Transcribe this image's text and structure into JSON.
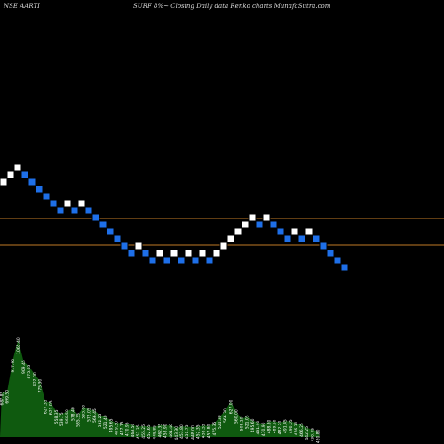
{
  "header": {
    "symbol": "NSE AARTI",
    "title": "SURF 8%~  Closing Daily data  Renko  charts MunafaSutra.com"
  },
  "colors": {
    "background": "#000000",
    "up_brick": "#ffffff",
    "down_brick": "#1e6fe8",
    "reference_line": "#c07a26",
    "volume_area": "#0f5a0f",
    "volume_label": "#ffffff"
  },
  "chart_data": {
    "type": "renko",
    "reference_levels": [
      246,
      276
    ],
    "bricks": [
      {
        "row": 0,
        "dir": "up"
      },
      {
        "row": 1,
        "dir": "up"
      },
      {
        "row": 2,
        "dir": "up"
      },
      {
        "row": 1,
        "dir": "down"
      },
      {
        "row": 0,
        "dir": "down"
      },
      {
        "row": -1,
        "dir": "down"
      },
      {
        "row": -2,
        "dir": "down"
      },
      {
        "row": -3,
        "dir": "down"
      },
      {
        "row": -4,
        "dir": "down"
      },
      {
        "row": -3,
        "dir": "up"
      },
      {
        "row": -4,
        "dir": "down"
      },
      {
        "row": -3,
        "dir": "up"
      },
      {
        "row": -4,
        "dir": "down"
      },
      {
        "row": -5,
        "dir": "down"
      },
      {
        "row": -6,
        "dir": "down"
      },
      {
        "row": -7,
        "dir": "down"
      },
      {
        "row": -8,
        "dir": "down"
      },
      {
        "row": -9,
        "dir": "down"
      },
      {
        "row": -10,
        "dir": "down"
      },
      {
        "row": -9,
        "dir": "up"
      },
      {
        "row": -10,
        "dir": "down"
      },
      {
        "row": -11,
        "dir": "down"
      },
      {
        "row": -10,
        "dir": "up"
      },
      {
        "row": -11,
        "dir": "down"
      },
      {
        "row": -10,
        "dir": "up"
      },
      {
        "row": -11,
        "dir": "down"
      },
      {
        "row": -10,
        "dir": "up"
      },
      {
        "row": -11,
        "dir": "down"
      },
      {
        "row": -10,
        "dir": "up"
      },
      {
        "row": -11,
        "dir": "down"
      },
      {
        "row": -10,
        "dir": "up"
      },
      {
        "row": -9,
        "dir": "up"
      },
      {
        "row": -8,
        "dir": "up"
      },
      {
        "row": -7,
        "dir": "up"
      },
      {
        "row": -6,
        "dir": "up"
      },
      {
        "row": -5,
        "dir": "up"
      },
      {
        "row": -6,
        "dir": "down"
      },
      {
        "row": -5,
        "dir": "up"
      },
      {
        "row": -6,
        "dir": "down"
      },
      {
        "row": -7,
        "dir": "down"
      },
      {
        "row": -8,
        "dir": "down"
      },
      {
        "row": -7,
        "dir": "up"
      },
      {
        "row": -8,
        "dir": "down"
      },
      {
        "row": -7,
        "dir": "up"
      },
      {
        "row": -8,
        "dir": "down"
      },
      {
        "row": -9,
        "dir": "down"
      },
      {
        "row": -10,
        "dir": "down"
      },
      {
        "row": -11,
        "dir": "down"
      },
      {
        "row": -12,
        "dir": "down"
      }
    ],
    "volume_labels": [
      "687.85",
      "699.50",
      "917.90",
      "1065.40",
      "909.45",
      "875.65",
      "822.00",
      "775.30",
      "627.35",
      "621.05",
      "558.35",
      "539.75",
      "560.50",
      "578.40",
      "535.35",
      "593.00",
      "572.05",
      "566.45",
      "532.25",
      "521.40",
      "495.65",
      "479.30",
      "477.15",
      "470.95",
      "463.50",
      "452.35",
      "455.25",
      "452.65",
      "448.85",
      "462.35",
      "458.90",
      "461.40",
      "443.30",
      "453.80",
      "451.75",
      "448.00",
      "452.35",
      "458.55",
      "457.80",
      "475.35",
      "521.30",
      "566.30",
      "627.00",
      "560.00",
      "508.10",
      "521.05",
      "495.60",
      "481.90",
      "470.90",
      "488.80",
      "489.50",
      "482.20",
      "491.45",
      "490.05",
      "476.30",
      "466.25",
      "442.25",
      "430.45",
      "420.80"
    ]
  }
}
